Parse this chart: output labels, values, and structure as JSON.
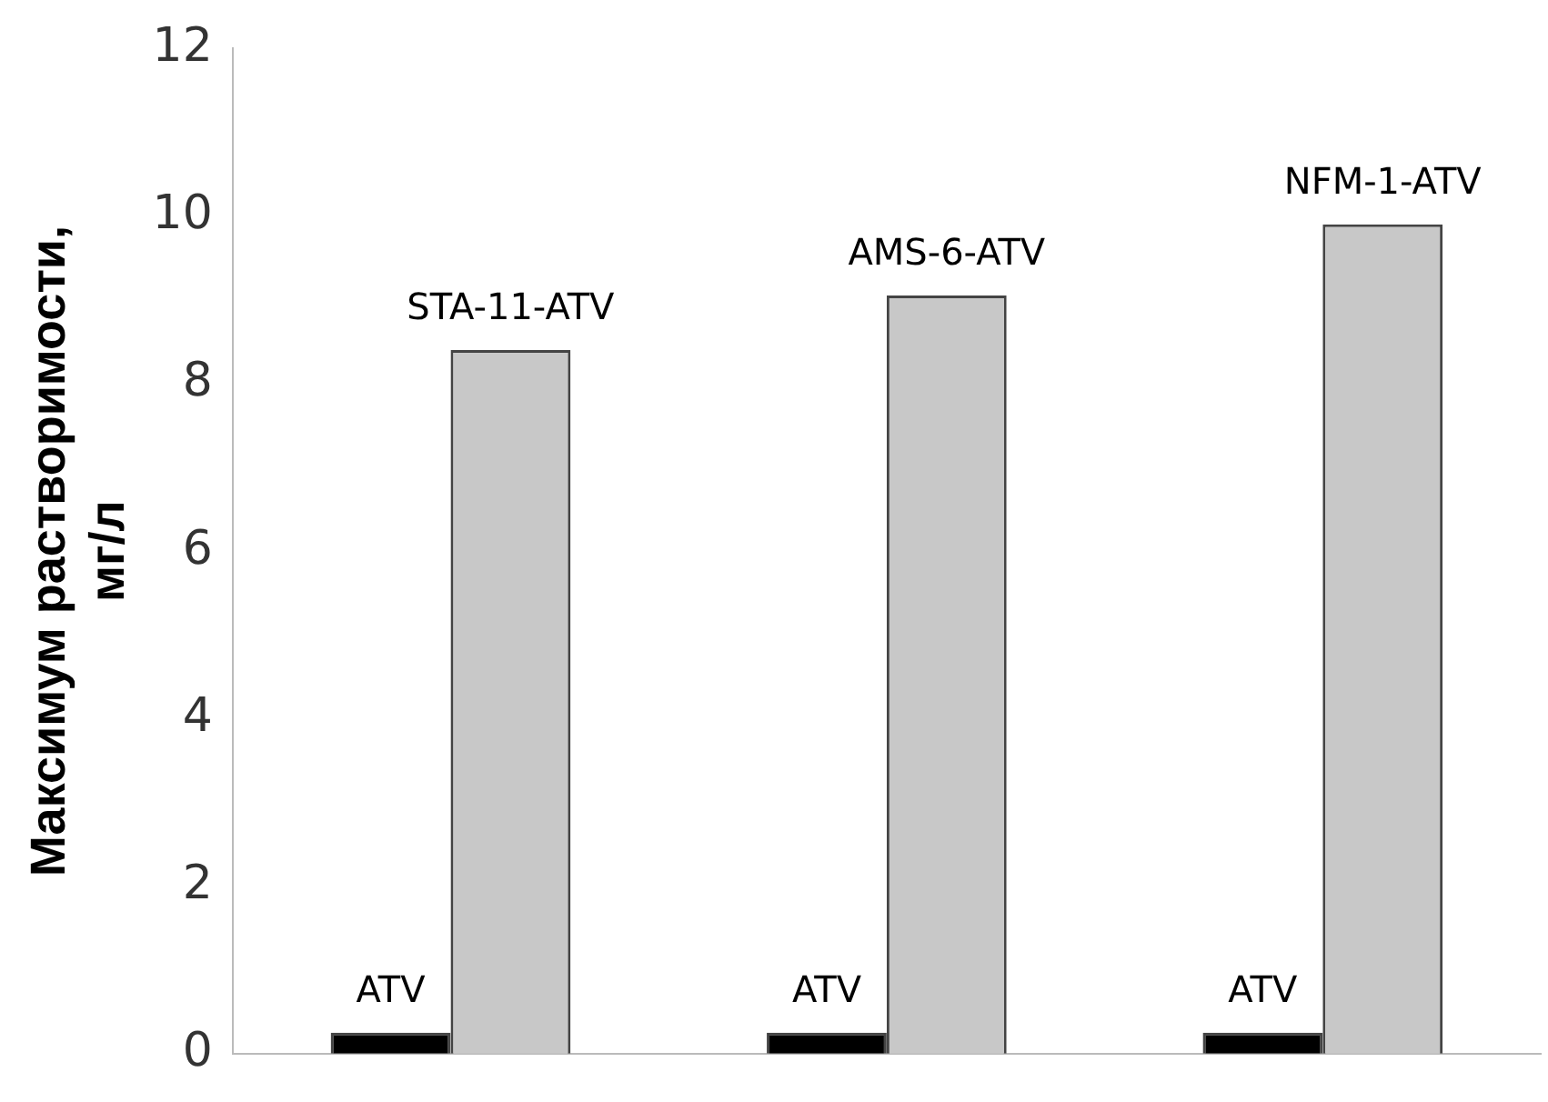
{
  "chart_data": {
    "type": "bar",
    "ylabel": "Максимум растворимости,\nмг/л",
    "categories": [
      null,
      null,
      null
    ],
    "series": [
      {
        "color": "#000000",
        "values": [
          0.25,
          0.25,
          0.25
        ],
        "value_labels": [
          "ATV",
          "ATV",
          "ATV"
        ]
      },
      {
        "color": "#c8c8c8",
        "values": [
          8.4,
          9.05,
          9.9
        ],
        "value_labels": [
          "STA-11-ATV",
          "AMS-6-ATV",
          "NFM-1-ATV"
        ]
      }
    ],
    "ylim": [
      0,
      12
    ],
    "yticks": [
      0,
      2,
      4,
      6,
      8,
      10,
      12
    ],
    "grid": false,
    "legend": false,
    "tick_labels": "y"
  }
}
